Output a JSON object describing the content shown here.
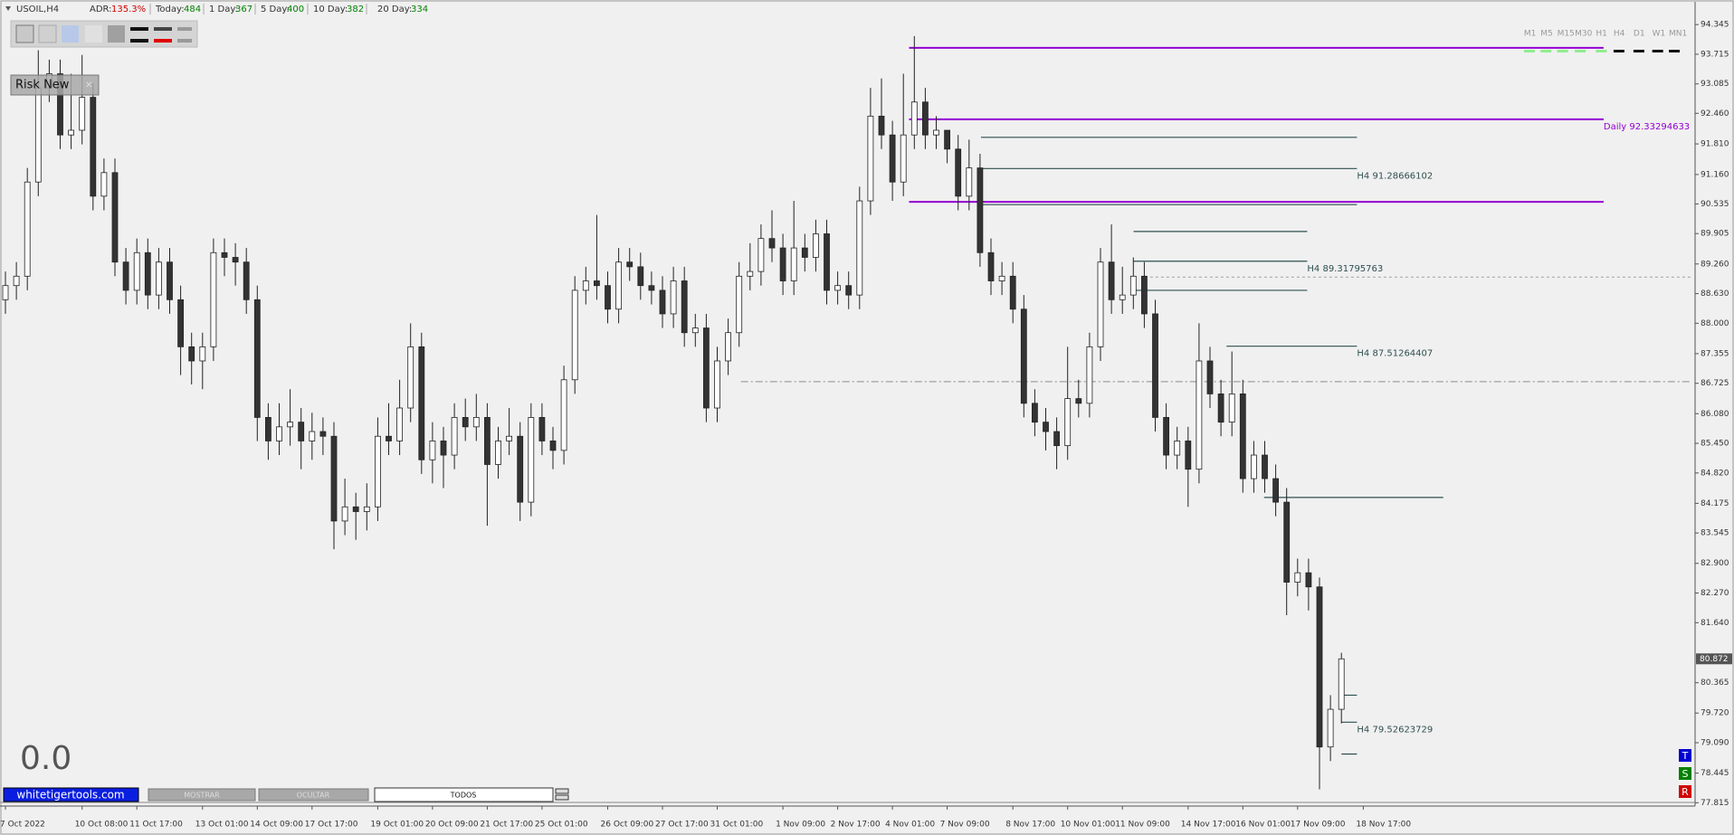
{
  "header": {
    "symbol": "USOIL,H4",
    "adr_label": "ADR:",
    "adr": "135.3%",
    "today_label": "Today:",
    "today": 484,
    "day1_label": "1 Day:",
    "day1": 367,
    "day5_label": "5 Day:",
    "day5": 400,
    "day10_label": "10 Day:",
    "day10": 382,
    "day20_label": "20 Day:",
    "day20": 334
  },
  "timeframes": [
    "M1",
    "M5",
    "M15",
    "M30",
    "H1",
    "H4",
    "D1",
    "W1",
    "MN1"
  ],
  "panel": {
    "title": "Risk New"
  },
  "counter": "0.0",
  "buttons": [
    "whitetigertools.com",
    "MOSTRAR",
    "OCULTAR",
    "TODOS"
  ],
  "side_buttons": [
    "T",
    "S",
    "R"
  ],
  "chart_data": {
    "type": "candlestick",
    "up_color": "#ffffff",
    "down_color": "#333333",
    "categories": [
      "7 Oct 2022",
      null,
      null,
      null,
      null,
      null,
      null,
      "10 Oct 08:00",
      null,
      null,
      null,
      null,
      "11 Oct 17:00",
      null,
      null,
      null,
      null,
      null,
      "13 Oct 01:00",
      null,
      null,
      null,
      null,
      "14 Oct 09:00",
      null,
      null,
      null,
      null,
      "17 Oct 17:00",
      null,
      null,
      null,
      null,
      null,
      "19 Oct 01:00",
      null,
      null,
      null,
      null,
      "20 Oct 09:00",
      null,
      null,
      null,
      null,
      "21 Oct 17:00",
      null,
      null,
      null,
      null,
      "25 Oct 01:00",
      null,
      null,
      null,
      null,
      null,
      "26 Oct 09:00",
      null,
      null,
      null,
      null,
      "27 Oct 17:00",
      null,
      null,
      null,
      null,
      "31 Oct 01:00",
      null,
      null,
      null,
      null,
      null,
      "1 Nov 09:00",
      null,
      null,
      null,
      null,
      "2 Nov 17:00",
      null,
      null,
      null,
      null,
      "4 Nov 01:00",
      null,
      null,
      null,
      null,
      "7 Nov 09:00",
      null,
      null,
      null,
      null,
      null,
      "8 Nov 17:00",
      null,
      null,
      null,
      null,
      "10 Nov 01:00",
      null,
      null,
      null,
      null,
      "11 Nov 09:00",
      null,
      null,
      null,
      null,
      null,
      "14 Nov 17:00",
      null,
      null,
      null,
      null,
      "16 Nov 01:00",
      null,
      null,
      null,
      null,
      "17 Nov 09:00",
      null,
      null,
      null,
      null,
      null,
      "18 Nov 17:00"
    ],
    "ohlc": [
      [
        88.5,
        89.1,
        88.2,
        88.8
      ],
      [
        88.8,
        89.3,
        88.5,
        89.0
      ],
      [
        89.0,
        91.3,
        88.7,
        91.0
      ],
      [
        91.0,
        93.8,
        90.7,
        93.0
      ],
      [
        93.0,
        93.6,
        92.7,
        93.3
      ],
      [
        93.3,
        93.6,
        91.7,
        92.0
      ],
      [
        92.0,
        93.3,
        91.7,
        92.1
      ],
      [
        92.1,
        93.7,
        91.8,
        92.8
      ],
      [
        92.8,
        93.1,
        90.4,
        90.7
      ],
      [
        90.7,
        91.5,
        90.4,
        91.2
      ],
      [
        91.2,
        91.5,
        89.0,
        89.3
      ],
      [
        89.3,
        89.6,
        88.4,
        88.7
      ],
      [
        88.7,
        89.8,
        88.4,
        89.5
      ],
      [
        89.5,
        89.8,
        88.3,
        88.6
      ],
      [
        88.6,
        89.6,
        88.3,
        89.3
      ],
      [
        89.3,
        89.6,
        88.2,
        88.5
      ],
      [
        88.5,
        88.8,
        86.9,
        87.5
      ],
      [
        87.5,
        87.8,
        86.7,
        87.2
      ],
      [
        87.2,
        87.8,
        86.6,
        87.5
      ],
      [
        87.5,
        89.8,
        87.2,
        89.5
      ],
      [
        89.5,
        89.8,
        89.0,
        89.4
      ],
      [
        89.4,
        89.7,
        88.8,
        89.3
      ],
      [
        89.3,
        89.6,
        88.2,
        88.5
      ],
      [
        88.5,
        88.8,
        85.5,
        86.0
      ],
      [
        86.0,
        86.3,
        85.1,
        85.5
      ],
      [
        85.5,
        86.3,
        85.2,
        85.8
      ],
      [
        85.8,
        86.6,
        85.4,
        85.9
      ],
      [
        85.9,
        86.2,
        84.9,
        85.5
      ],
      [
        85.5,
        86.1,
        85.1,
        85.7
      ],
      [
        85.7,
        86.0,
        85.2,
        85.6
      ],
      [
        85.6,
        85.9,
        83.2,
        83.8
      ],
      [
        83.8,
        84.7,
        83.5,
        84.1
      ],
      [
        84.1,
        84.4,
        83.4,
        84.0
      ],
      [
        84.0,
        84.6,
        83.6,
        84.1
      ],
      [
        84.1,
        86.0,
        83.8,
        85.6
      ],
      [
        85.6,
        86.3,
        85.2,
        85.5
      ],
      [
        85.5,
        86.8,
        85.2,
        86.2
      ],
      [
        86.2,
        88.0,
        85.9,
        87.5
      ],
      [
        87.5,
        87.8,
        84.8,
        85.1
      ],
      [
        85.1,
        85.9,
        84.6,
        85.5
      ],
      [
        85.5,
        85.8,
        84.5,
        85.2
      ],
      [
        85.2,
        86.3,
        84.9,
        86.0
      ],
      [
        86.0,
        86.4,
        85.5,
        85.8
      ],
      [
        85.8,
        86.5,
        85.5,
        86.0
      ],
      [
        86.0,
        86.3,
        83.7,
        85.0
      ],
      [
        85.0,
        85.8,
        84.7,
        85.5
      ],
      [
        85.5,
        86.2,
        85.2,
        85.6
      ],
      [
        85.6,
        85.9,
        83.8,
        84.2
      ],
      [
        84.2,
        86.3,
        83.9,
        86.0
      ],
      [
        86.0,
        86.3,
        85.2,
        85.5
      ],
      [
        85.5,
        85.8,
        84.9,
        85.3
      ],
      [
        85.3,
        87.1,
        85.0,
        86.8
      ],
      [
        86.8,
        89.0,
        86.5,
        88.7
      ],
      [
        88.7,
        89.2,
        88.4,
        88.9
      ],
      [
        88.9,
        90.3,
        88.5,
        88.8
      ],
      [
        88.8,
        89.1,
        88.0,
        88.3
      ],
      [
        88.3,
        89.6,
        88.0,
        89.3
      ],
      [
        89.3,
        89.6,
        88.9,
        89.2
      ],
      [
        89.2,
        89.5,
        88.5,
        88.8
      ],
      [
        88.8,
        89.1,
        88.4,
        88.7
      ],
      [
        88.7,
        89.0,
        87.9,
        88.2
      ],
      [
        88.2,
        89.2,
        87.9,
        88.9
      ],
      [
        88.9,
        89.2,
        87.5,
        87.8
      ],
      [
        87.8,
        88.2,
        87.5,
        87.9
      ],
      [
        87.9,
        88.2,
        85.9,
        86.2
      ],
      [
        86.2,
        87.5,
        85.9,
        87.2
      ],
      [
        87.2,
        88.1,
        86.9,
        87.8
      ],
      [
        87.8,
        89.3,
        87.5,
        89.0
      ],
      [
        89.0,
        89.7,
        88.7,
        89.1
      ],
      [
        89.1,
        90.1,
        88.8,
        89.8
      ],
      [
        89.8,
        90.4,
        89.3,
        89.6
      ],
      [
        89.6,
        89.9,
        88.6,
        88.9
      ],
      [
        88.9,
        90.6,
        88.6,
        89.6
      ],
      [
        89.6,
        89.9,
        89.1,
        89.4
      ],
      [
        89.4,
        90.2,
        89.1,
        89.9
      ],
      [
        89.9,
        90.2,
        88.4,
        88.7
      ],
      [
        88.7,
        89.1,
        88.4,
        88.8
      ],
      [
        88.8,
        89.1,
        88.3,
        88.6
      ],
      [
        88.6,
        90.9,
        88.3,
        90.6
      ],
      [
        90.6,
        93.0,
        90.3,
        92.4
      ],
      [
        92.4,
        93.2,
        91.7,
        92.0
      ],
      [
        92.0,
        92.3,
        90.6,
        91.0
      ],
      [
        91.0,
        93.3,
        90.7,
        92.0
      ],
      [
        92.0,
        94.1,
        91.7,
        92.7
      ],
      [
        92.7,
        93.0,
        91.7,
        92.0
      ],
      [
        92.0,
        92.4,
        91.7,
        92.1
      ],
      [
        92.1,
        92.0,
        91.4,
        91.7
      ],
      [
        91.7,
        92.0,
        90.4,
        90.7
      ],
      [
        90.7,
        91.9,
        90.4,
        91.3
      ],
      [
        91.3,
        91.6,
        89.2,
        89.5
      ],
      [
        89.5,
        89.8,
        88.6,
        88.9
      ],
      [
        88.9,
        89.3,
        88.6,
        89.0
      ],
      [
        89.0,
        89.3,
        88.0,
        88.3
      ],
      [
        88.3,
        88.6,
        86.0,
        86.3
      ],
      [
        86.3,
        86.6,
        85.6,
        85.9
      ],
      [
        85.9,
        86.2,
        85.3,
        85.7
      ],
      [
        85.7,
        86.0,
        84.9,
        85.4
      ],
      [
        85.4,
        87.5,
        85.1,
        86.4
      ],
      [
        86.4,
        86.8,
        86.0,
        86.3
      ],
      [
        86.3,
        87.8,
        86.0,
        87.5
      ],
      [
        87.5,
        89.6,
        87.2,
        89.3
      ],
      [
        89.3,
        90.1,
        88.2,
        88.5
      ],
      [
        88.5,
        89.2,
        88.2,
        88.6
      ],
      [
        88.6,
        89.4,
        88.3,
        89.0
      ],
      [
        89.0,
        89.3,
        87.9,
        88.2
      ],
      [
        88.2,
        88.5,
        85.7,
        86.0
      ],
      [
        86.0,
        86.3,
        84.9,
        85.2
      ],
      [
        85.2,
        85.8,
        84.9,
        85.5
      ],
      [
        85.5,
        85.8,
        84.1,
        84.9
      ],
      [
        84.9,
        88.0,
        84.6,
        87.2
      ],
      [
        87.2,
        87.5,
        86.2,
        86.5
      ],
      [
        86.5,
        86.8,
        85.6,
        85.9
      ],
      [
        85.9,
        87.4,
        85.6,
        86.5
      ],
      [
        86.5,
        86.8,
        84.4,
        84.7
      ],
      [
        84.7,
        85.5,
        84.4,
        85.2
      ],
      [
        85.2,
        85.5,
        84.4,
        84.7
      ],
      [
        84.7,
        85.0,
        83.9,
        84.2
      ],
      [
        84.2,
        84.5,
        81.8,
        82.5
      ],
      [
        82.5,
        83.0,
        82.2,
        82.7
      ],
      [
        82.7,
        83.0,
        81.9,
        82.4
      ],
      [
        82.4,
        82.6,
        78.1,
        79.0
      ],
      [
        79.0,
        80.1,
        78.7,
        79.8
      ],
      [
        79.8,
        81.0,
        79.5,
        80.872
      ],
      null,
      null
    ],
    "ylim": [
      77.745,
      94.79
    ],
    "yticks": [
      94.345,
      93.715,
      93.085,
      {
        "value": 92.46,
        "label": "92.460"
      },
      {
        "value": 91.81,
        "label": "91.810"
      },
      {
        "value": 91.16,
        "label": "91.160"
      },
      90.535,
      89.905,
      {
        "value": 89.26,
        "label": "89.260"
      },
      {
        "value": 88.63,
        "label": "88.630"
      },
      {
        "value": 88,
        "label": "88.000"
      },
      87.355,
      86.725,
      {
        "value": 86.08,
        "label": "86.080"
      },
      {
        "value": 85.45,
        "label": "85.450"
      },
      {
        "value": 84.82,
        "label": "84.820"
      },
      84.175,
      83.545,
      {
        "value": 82.9,
        "label": "82.900"
      },
      {
        "value": 82.27,
        "label": "82.270"
      },
      {
        "value": 81.64,
        "label": "81.640"
      },
      80.365,
      {
        "value": 79.72,
        "label": "79.720"
      },
      {
        "value": 79.09,
        "label": "79.090"
      },
      78.445,
      77.815
    ],
    "current_price": 80.872,
    "levels": [
      {
        "value": 93.85,
        "color": "#9400d3",
        "dash": "solid"
      },
      {
        "value": 92.33294633,
        "color": "#9400d3",
        "dash": "solid",
        "label": "Daily 92.33294633"
      },
      {
        "value": 90.58,
        "color": "#9400d3",
        "dash": "solid"
      },
      {
        "value": 91.95,
        "color": "#2f4f4f",
        "dash": "solid"
      },
      {
        "value": 91.28666102,
        "color": "#2f4f4f",
        "dash": "solid",
        "label": "H4 91.28666102"
      },
      {
        "value": 90.52,
        "color": "#2f4f4f",
        "dash": "solid"
      },
      {
        "value": 89.95,
        "color": "#2f4f4f",
        "dash": "solid"
      },
      {
        "value": 89.31795763,
        "color": "#2f4f4f",
        "dash": "solid",
        "label": "H4 89.31795763"
      },
      {
        "value": 88.7,
        "color": "#2f4f4f",
        "dash": "solid"
      },
      {
        "value": 87.51264407,
        "color": "#2f4f4f",
        "dash": "solid",
        "label": "H4 87.51264407"
      },
      {
        "value": 84.3,
        "color": "#2f4f4f",
        "dash": "solid"
      },
      {
        "value": 80.1,
        "color": "#2f4f4f",
        "dash": "solid"
      },
      {
        "value": 79.52623729,
        "color": "#2f4f4f",
        "dash": "solid",
        "label": "H4 79.52623729"
      },
      {
        "value": 78.85,
        "color": "#2f4f4f",
        "dash": "solid"
      },
      {
        "value": 88.98,
        "color": "#b0b0b0",
        "dash": "dashed"
      },
      {
        "value": 86.76,
        "color": "#a0a0a0",
        "dash": "dashdot"
      }
    ]
  }
}
